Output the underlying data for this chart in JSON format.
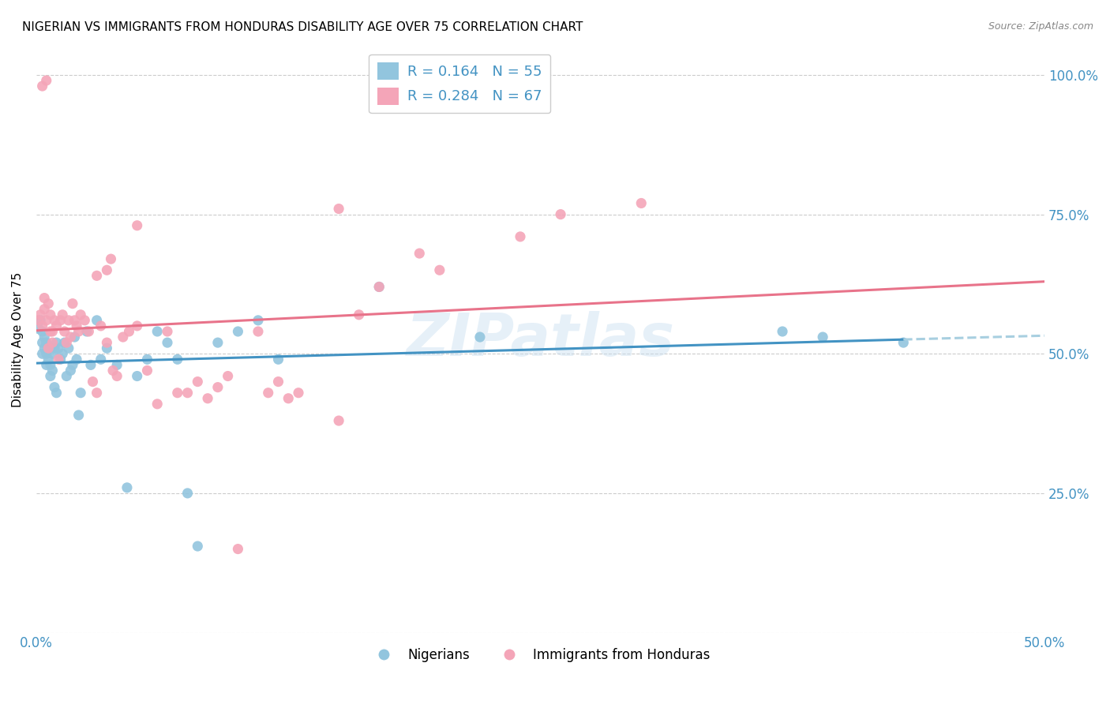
{
  "title": "NIGERIAN VS IMMIGRANTS FROM HONDURAS DISABILITY AGE OVER 75 CORRELATION CHART",
  "source": "Source: ZipAtlas.com",
  "ylabel": "Disability Age Over 75",
  "xlim": [
    0.0,
    0.5
  ],
  "ylim": [
    0.0,
    1.05
  ],
  "ytick_positions": [
    0.0,
    0.25,
    0.5,
    0.75,
    1.0
  ],
  "ytick_labels_right": [
    "",
    "25.0%",
    "50.0%",
    "75.0%",
    "100.0%"
  ],
  "blue_color": "#92c5de",
  "pink_color": "#f4a5b8",
  "blue_line_color": "#4393c3",
  "pink_line_color": "#e8738a",
  "blue_dashed_color": "#a8cfe0",
  "watermark": "ZIPatlas",
  "nigerians_x": [
    0.001,
    0.002,
    0.003,
    0.003,
    0.003,
    0.004,
    0.004,
    0.005,
    0.005,
    0.005,
    0.006,
    0.006,
    0.007,
    0.007,
    0.008,
    0.008,
    0.009,
    0.009,
    0.01,
    0.01,
    0.011,
    0.012,
    0.013,
    0.014,
    0.015,
    0.016,
    0.017,
    0.018,
    0.019,
    0.02,
    0.021,
    0.022,
    0.025,
    0.027,
    0.03,
    0.032,
    0.035,
    0.04,
    0.045,
    0.05,
    0.055,
    0.06,
    0.065,
    0.07,
    0.075,
    0.08,
    0.09,
    0.1,
    0.11,
    0.12,
    0.17,
    0.22,
    0.37,
    0.39,
    0.43
  ],
  "nigerians_y": [
    0.545,
    0.56,
    0.5,
    0.54,
    0.52,
    0.51,
    0.53,
    0.48,
    0.5,
    0.52,
    0.49,
    0.51,
    0.46,
    0.48,
    0.47,
    0.5,
    0.44,
    0.51,
    0.43,
    0.52,
    0.51,
    0.49,
    0.5,
    0.52,
    0.46,
    0.51,
    0.47,
    0.48,
    0.53,
    0.49,
    0.39,
    0.43,
    0.54,
    0.48,
    0.56,
    0.49,
    0.51,
    0.48,
    0.26,
    0.46,
    0.49,
    0.54,
    0.52,
    0.49,
    0.25,
    0.155,
    0.52,
    0.54,
    0.56,
    0.49,
    0.62,
    0.53,
    0.54,
    0.53,
    0.52
  ],
  "honduras_x": [
    0.001,
    0.002,
    0.003,
    0.003,
    0.004,
    0.004,
    0.005,
    0.005,
    0.006,
    0.006,
    0.007,
    0.007,
    0.008,
    0.008,
    0.009,
    0.01,
    0.011,
    0.012,
    0.013,
    0.014,
    0.015,
    0.016,
    0.017,
    0.018,
    0.019,
    0.02,
    0.021,
    0.022,
    0.024,
    0.026,
    0.028,
    0.03,
    0.032,
    0.035,
    0.038,
    0.04,
    0.043,
    0.046,
    0.05,
    0.055,
    0.06,
    0.065,
    0.07,
    0.075,
    0.08,
    0.085,
    0.09,
    0.095,
    0.1,
    0.11,
    0.115,
    0.12,
    0.125,
    0.13,
    0.15,
    0.16,
    0.17,
    0.2,
    0.24,
    0.26,
    0.03,
    0.035,
    0.037,
    0.05,
    0.15,
    0.19,
    0.3
  ],
  "honduras_y": [
    0.56,
    0.57,
    0.55,
    0.98,
    0.6,
    0.58,
    0.99,
    0.56,
    0.51,
    0.59,
    0.54,
    0.57,
    0.52,
    0.54,
    0.56,
    0.55,
    0.49,
    0.56,
    0.57,
    0.54,
    0.52,
    0.56,
    0.53,
    0.59,
    0.56,
    0.55,
    0.54,
    0.57,
    0.56,
    0.54,
    0.45,
    0.43,
    0.55,
    0.52,
    0.47,
    0.46,
    0.53,
    0.54,
    0.55,
    0.47,
    0.41,
    0.54,
    0.43,
    0.43,
    0.45,
    0.42,
    0.44,
    0.46,
    0.15,
    0.54,
    0.43,
    0.45,
    0.42,
    0.43,
    0.38,
    0.57,
    0.62,
    0.65,
    0.71,
    0.75,
    0.64,
    0.65,
    0.67,
    0.73,
    0.76,
    0.68,
    0.77
  ]
}
